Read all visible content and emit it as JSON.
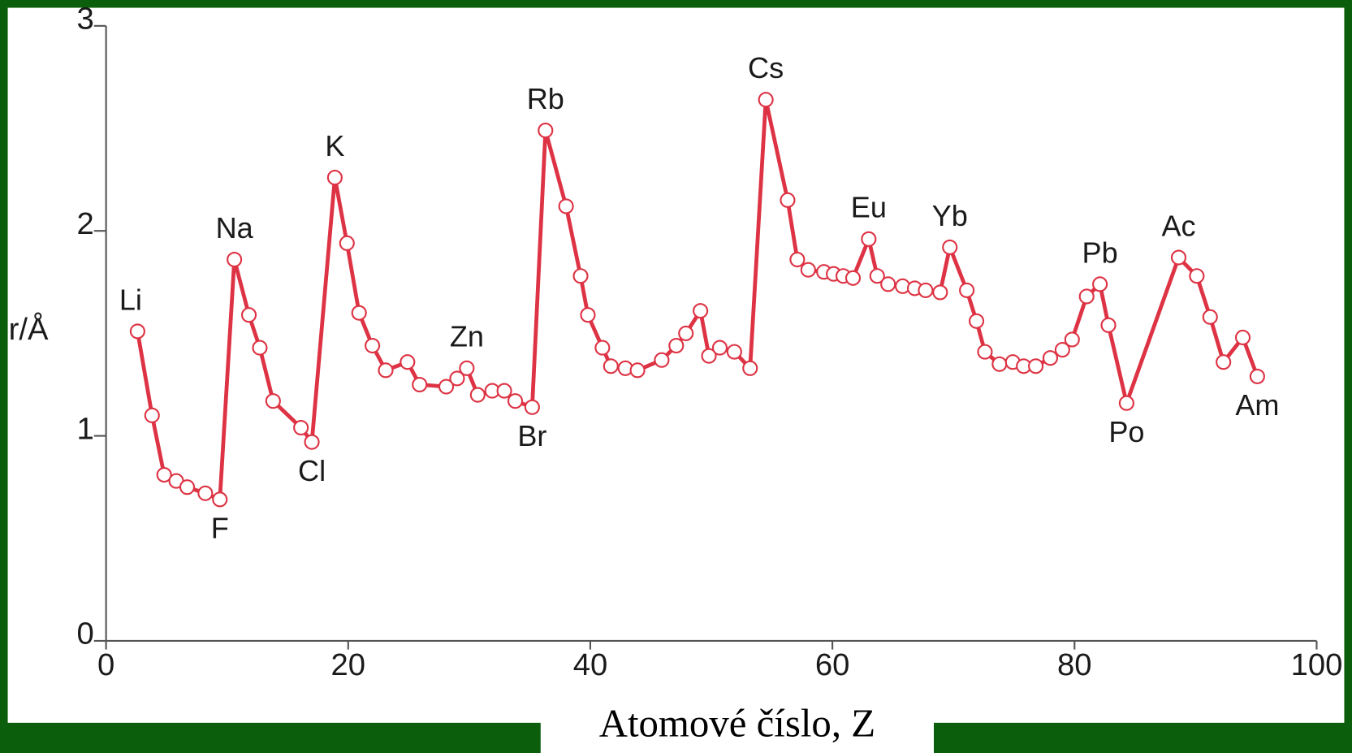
{
  "chart_data": {
    "type": "line",
    "xlabel": "Atomové číslo, Z",
    "ylabel": "r/Å",
    "xlim": [
      0,
      100
    ],
    "xticks": [
      0,
      20,
      40,
      60,
      80,
      100
    ],
    "ylim": [
      0,
      3
    ],
    "yticks": [
      0,
      1,
      2,
      3
    ],
    "color": "#dd3344",
    "x": [
      2.6,
      3.8,
      4.8,
      5.8,
      6.7,
      8.2,
      9.4,
      10.6,
      11.8,
      12.7,
      13.8,
      16.1,
      17.0,
      18.9,
      19.9,
      20.9,
      22.0,
      23.1,
      24.9,
      25.9,
      28.1,
      29.0,
      29.8,
      30.7,
      31.9,
      32.9,
      33.8,
      35.2,
      36.3,
      38.0,
      39.2,
      39.8,
      41.0,
      41.7,
      42.9,
      43.9,
      45.9,
      47.1,
      47.9,
      49.1,
      49.8,
      50.7,
      51.9,
      53.2,
      54.5,
      56.3,
      57.1,
      58.0,
      59.3,
      60.1,
      60.9,
      61.7,
      63.0,
      63.7,
      64.6,
      65.8,
      66.8,
      67.7,
      68.9,
      69.7,
      71.1,
      71.9,
      72.6,
      73.8,
      74.9,
      75.8,
      76.8,
      78.0,
      79.0,
      79.8,
      81.0,
      82.1,
      82.8,
      84.3,
      88.6,
      90.1,
      91.2,
      92.3,
      93.9,
      95.1
    ],
    "values": [
      1.51,
      1.1,
      0.81,
      0.78,
      0.75,
      0.72,
      0.69,
      1.86,
      1.59,
      1.43,
      1.17,
      1.04,
      0.97,
      2.26,
      1.94,
      1.6,
      1.44,
      1.32,
      1.36,
      1.25,
      1.24,
      1.28,
      1.33,
      1.2,
      1.22,
      1.22,
      1.17,
      1.14,
      2.49,
      2.12,
      1.78,
      1.59,
      1.43,
      1.34,
      1.33,
      1.32,
      1.37,
      1.44,
      1.5,
      1.61,
      1.39,
      1.43,
      1.41,
      1.33,
      2.64,
      2.15,
      1.86,
      1.81,
      1.8,
      1.79,
      1.78,
      1.77,
      1.96,
      1.78,
      1.74,
      1.73,
      1.72,
      1.71,
      1.7,
      1.92,
      1.71,
      1.56,
      1.41,
      1.35,
      1.36,
      1.34,
      1.34,
      1.38,
      1.42,
      1.47,
      1.68,
      1.74,
      1.54,
      1.16,
      1.87,
      1.78,
      1.58,
      1.36,
      1.48,
      1.29
    ],
    "annotations": [
      {
        "text": "Li",
        "x": 2.6,
        "y": 1.51
      },
      {
        "text": "F",
        "x": 9.4,
        "y": 0.69
      },
      {
        "text": "Na",
        "x": 10.6,
        "y": 1.86
      },
      {
        "text": "Cl",
        "x": 17.0,
        "y": 0.97
      },
      {
        "text": "K",
        "x": 18.9,
        "y": 2.26
      },
      {
        "text": "Zn",
        "x": 29.8,
        "y": 1.33
      },
      {
        "text": "Br",
        "x": 35.2,
        "y": 1.14
      },
      {
        "text": "Rb",
        "x": 36.3,
        "y": 2.49
      },
      {
        "text": "Cs",
        "x": 54.5,
        "y": 2.64
      },
      {
        "text": "Eu",
        "x": 63.0,
        "y": 1.96
      },
      {
        "text": "Yb",
        "x": 69.7,
        "y": 1.92
      },
      {
        "text": "Pb",
        "x": 82.1,
        "y": 1.74
      },
      {
        "text": "Po",
        "x": 84.3,
        "y": 1.16
      },
      {
        "text": "Ac",
        "x": 88.6,
        "y": 1.87
      },
      {
        "text": "Am",
        "x": 95.1,
        "y": 1.29
      }
    ]
  }
}
